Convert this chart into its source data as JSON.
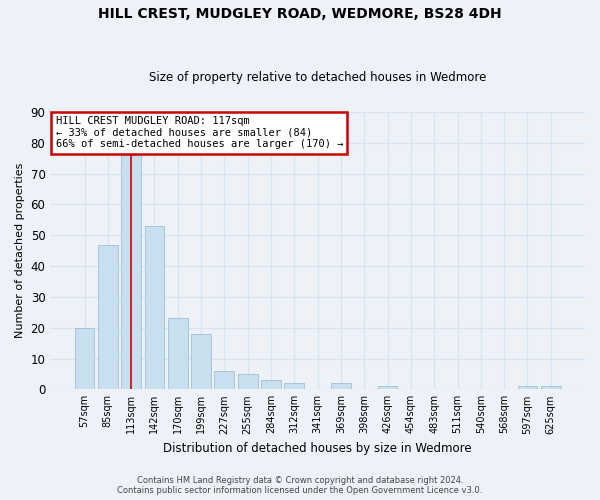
{
  "title": "HILL CREST, MUDGLEY ROAD, WEDMORE, BS28 4DH",
  "subtitle": "Size of property relative to detached houses in Wedmore",
  "xlabel": "Distribution of detached houses by size in Wedmore",
  "ylabel": "Number of detached properties",
  "categories": [
    "57sqm",
    "85sqm",
    "113sqm",
    "142sqm",
    "170sqm",
    "199sqm",
    "227sqm",
    "255sqm",
    "284sqm",
    "312sqm",
    "341sqm",
    "369sqm",
    "398sqm",
    "426sqm",
    "454sqm",
    "483sqm",
    "511sqm",
    "540sqm",
    "568sqm",
    "597sqm",
    "625sqm"
  ],
  "values": [
    20,
    47,
    76,
    53,
    23,
    18,
    6,
    5,
    3,
    2,
    0,
    2,
    0,
    1,
    0,
    0,
    0,
    0,
    0,
    1,
    1
  ],
  "bar_color": "#c8dff0",
  "bar_edge_color": "#9ec0d8",
  "highlight_index": 2,
  "highlight_line_color": "#cc0000",
  "ylim": [
    0,
    90
  ],
  "yticks": [
    0,
    10,
    20,
    30,
    40,
    50,
    60,
    70,
    80,
    90
  ],
  "annotation_line1": "HILL CREST MUDGLEY ROAD: 117sqm",
  "annotation_line2": "← 33% of detached houses are smaller (84)",
  "annotation_line3": "66% of semi-detached houses are larger (170) →",
  "annotation_box_color": "#ffffff",
  "annotation_box_edge": "#cc0000",
  "footer_line1": "Contains HM Land Registry data © Crown copyright and database right 2024.",
  "footer_line2": "Contains public sector information licensed under the Open Government Licence v3.0.",
  "background_color": "#eef2f7",
  "grid_color": "#d8e4f0",
  "fig_width": 6.0,
  "fig_height": 5.0,
  "dpi": 100
}
